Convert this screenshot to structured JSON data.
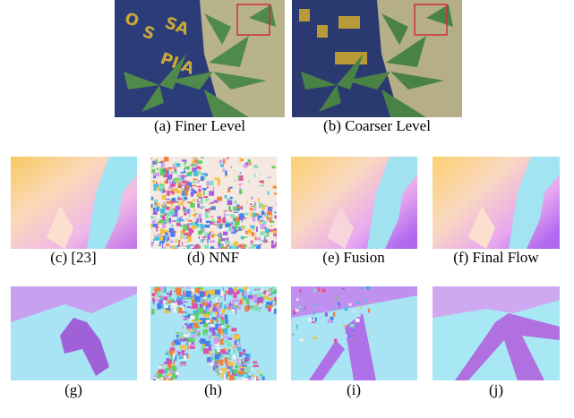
{
  "captions": {
    "a": "(a)  Finer Level",
    "b": "(b)  Coarser Level",
    "c": "(c)  [23]",
    "d": "(d)  NNF",
    "e": "(e)  Fusion",
    "f": "(f)  Final Flow",
    "g": "(g)",
    "h": "(h)",
    "i": "(i)",
    "j": "(j)"
  }
}
